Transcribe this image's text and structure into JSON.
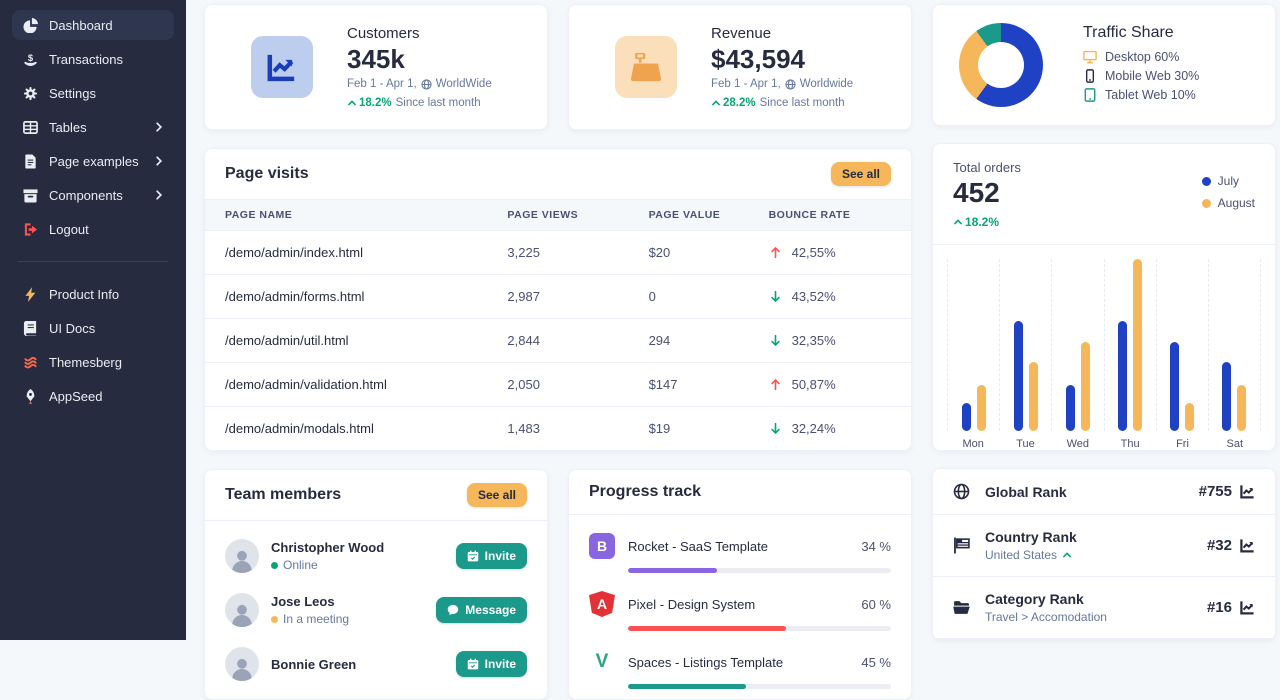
{
  "colors": {
    "sidebar_bg": "#262b40",
    "sidebar_active": "#2e3650",
    "primary_blue": "#1f42c5",
    "orange": "#f5b759",
    "teal": "#1b998b",
    "success_green": "#05a677",
    "danger_red": "#fa5252",
    "purple": "#8965e0",
    "text_dark": "#262b40",
    "text_gray": "#66799e",
    "page_bg": "#f5f8fb"
  },
  "sidebar": {
    "items": [
      {
        "label": "Dashboard",
        "icon": "pie-chart",
        "active": true,
        "chevron": false,
        "icon_color": "#eaedf2"
      },
      {
        "label": "Transactions",
        "icon": "hand-dollar",
        "active": false,
        "chevron": false,
        "icon_color": "#eaedf2"
      },
      {
        "label": "Settings",
        "icon": "gear",
        "active": false,
        "chevron": false,
        "icon_color": "#eaedf2"
      },
      {
        "label": "Tables",
        "icon": "table",
        "active": false,
        "chevron": true,
        "icon_color": "#eaedf2"
      },
      {
        "label": "Page examples",
        "icon": "document",
        "active": false,
        "chevron": true,
        "icon_color": "#eaedf2"
      },
      {
        "label": "Components",
        "icon": "box",
        "active": false,
        "chevron": true,
        "icon_color": "#eaedf2"
      },
      {
        "label": "Logout",
        "icon": "sign-out",
        "active": false,
        "chevron": false,
        "icon_color": "#fa5252"
      }
    ],
    "secondary_items": [
      {
        "label": "Product Info",
        "icon": "bolt",
        "icon_color": "#f5b759"
      },
      {
        "label": "UI Docs",
        "icon": "book",
        "icon_color": "#eaedf2"
      },
      {
        "label": "Themesberg",
        "icon": "themesberg",
        "icon_color": "#f4694c"
      },
      {
        "label": "AppSeed",
        "icon": "rocket",
        "icon_color": "#eaedf2"
      }
    ]
  },
  "stat_cards": [
    {
      "title": "Customers",
      "value": "345k",
      "period": "Feb 1 - Apr 1,",
      "scope": "WorldWide",
      "change": "18.2%",
      "change_suffix": "Since last month",
      "icon": "chart-line",
      "icon_style": "blue"
    },
    {
      "title": "Revenue",
      "value": "$43,594",
      "period": "Feb 1 - Apr 1,",
      "scope": "Worldwide",
      "change": "28.2%",
      "change_suffix": "Since last month",
      "icon": "cash-register",
      "icon_style": "orange"
    }
  ],
  "page_visits": {
    "title": "Page visits",
    "see_all_label": "See all",
    "columns": [
      "Page name",
      "Page views",
      "Page value",
      "Bounce rate"
    ],
    "rows": [
      {
        "page": "/demo/admin/index.html",
        "views": "3,225",
        "value": "$20",
        "bounce": "42,55%",
        "trend": "up"
      },
      {
        "page": "/demo/admin/forms.html",
        "views": "2,987",
        "value": "0",
        "bounce": "43,52%",
        "trend": "down"
      },
      {
        "page": "/demo/admin/util.html",
        "views": "2,844",
        "value": "294",
        "bounce": "32,35%",
        "trend": "down"
      },
      {
        "page": "/demo/admin/validation.html",
        "views": "2,050",
        "value": "$147",
        "bounce": "50,87%",
        "trend": "up"
      },
      {
        "page": "/demo/admin/modals.html",
        "views": "1,483",
        "value": "$19",
        "bounce": "32,24%",
        "trend": "down"
      }
    ]
  },
  "team_members": {
    "title": "Team members",
    "see_all_label": "See all",
    "members": [
      {
        "name": "Christopher Wood",
        "status": "Online",
        "status_color": "#05a677",
        "action": "Invite",
        "action_icon": "calendar"
      },
      {
        "name": "Jose Leos",
        "status": "In a meeting",
        "status_color": "#f5b759",
        "action": "Message",
        "action_icon": "chat"
      },
      {
        "name": "Bonnie Green",
        "status": "",
        "status_color": "",
        "action": "Invite",
        "action_icon": "calendar"
      }
    ]
  },
  "progress_track": {
    "title": "Progress track",
    "items": [
      {
        "label": "Rocket - SaaS Template",
        "percent": 34,
        "percent_label": "34 %",
        "color": "#8965e0",
        "icon": "bootstrap",
        "icon_letter": "B"
      },
      {
        "label": "Pixel - Design System",
        "percent": 60,
        "percent_label": "60 %",
        "color": "#fa5252",
        "icon": "angular",
        "icon_letter": "A"
      },
      {
        "label": "Spaces - Listings Template",
        "percent": 45,
        "percent_label": "45 %",
        "color": "#1b998b",
        "icon": "vue",
        "icon_letter": "V"
      }
    ]
  },
  "total_orders": {
    "title": "Total orders",
    "value": "452",
    "change": "18.2%",
    "legend": [
      {
        "label": "July",
        "color": "#1f42c5"
      },
      {
        "label": "August",
        "color": "#f5b759"
      }
    ]
  },
  "ranks": {
    "items": [
      {
        "label": "Global Rank",
        "sub": "",
        "sub_caret": false,
        "value": "#755",
        "icon": "globe"
      },
      {
        "label": "Country Rank",
        "sub": "United States",
        "sub_caret": true,
        "value": "#32",
        "icon": "flag"
      },
      {
        "label": "Category Rank",
        "sub": "Travel > Accomodation",
        "sub_caret": false,
        "value": "#16",
        "icon": "folder"
      }
    ]
  },
  "chart_data": [
    {
      "type": "pie",
      "donut": true,
      "title": "Traffic Share",
      "slices": [
        {
          "label": "Desktop",
          "value": 60,
          "display": "Desktop 60%",
          "color": "#1f42c5",
          "icon": "desktop",
          "icon_color": "#f5b759"
        },
        {
          "label": "Mobile Web",
          "value": 30,
          "display": "Mobile Web 30%",
          "color": "#f5b759",
          "icon": "mobile",
          "icon_color": "#262b40"
        },
        {
          "label": "Tablet Web",
          "value": 10,
          "display": "Tablet Web 10%",
          "color": "#1b998b",
          "icon": "tablet",
          "icon_color": "#1b998b"
        }
      ],
      "legend_position": "right"
    },
    {
      "type": "bar",
      "title": "Total orders",
      "categories": [
        "Mon",
        "Tue",
        "Wed",
        "Thu",
        "Fri",
        "Sat"
      ],
      "series": [
        {
          "name": "July",
          "color": "#1f42c5",
          "values": [
            16,
            64,
            27,
            64,
            52,
            40
          ]
        },
        {
          "name": "August",
          "color": "#f5b759",
          "values": [
            27,
            40,
            52,
            100,
            16,
            27
          ]
        }
      ],
      "ylim": [
        0,
        100
      ],
      "grid": "vertical-dashed",
      "legend_position": "top-right"
    }
  ]
}
